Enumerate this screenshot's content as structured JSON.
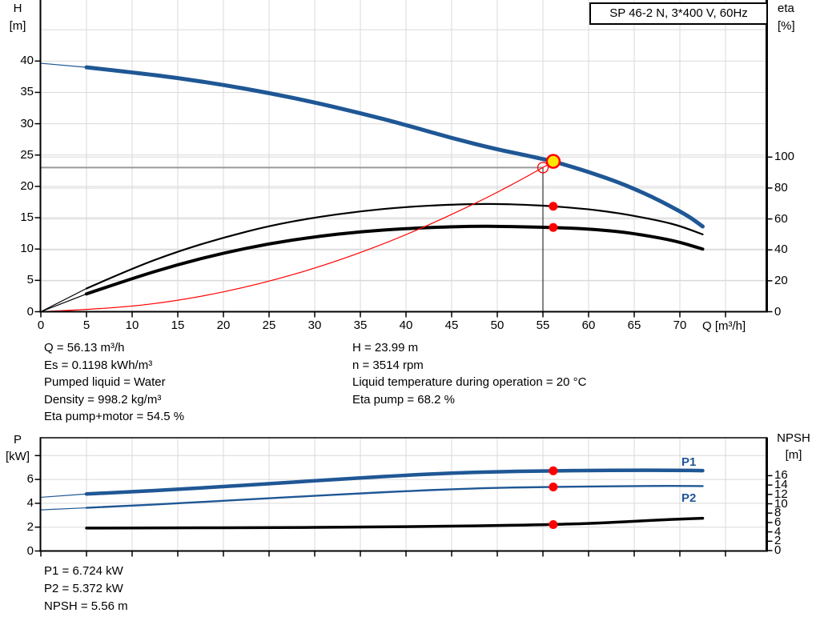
{
  "colors": {
    "curve_blue": "#1f5795",
    "marker_red": "#ff0000",
    "marker_yellow_fill": "#ffe600",
    "grid_gray": "#d9d9d9",
    "reference_gray": "#9a9a9a",
    "axis_black": "#000000"
  },
  "title_box": {
    "label": "SP 46-2 N, 3*400 V, 60Hz"
  },
  "top_chart": {
    "y_left_title_1": "H",
    "y_left_title_2": "[m]",
    "y_right_title_1": "eta",
    "y_right_title_2": "[%]",
    "x_axis_label": "Q [m³/h]"
  },
  "bottom_chart": {
    "y_left_title_1": "P",
    "y_left_title_2": "[kW]",
    "y_right_title_1": "NPSH",
    "y_right_title_2": "[m]",
    "p1_label": "P1",
    "p2_label": "P2"
  },
  "info_top": {
    "left": [
      "Q = 56.13 m³/h",
      "Es = 0.1198 kWh/m³",
      "Pumped liquid = Water",
      "Density = 998.2 kg/m³",
      "Eta pump+motor = 54.5 %"
    ],
    "right": [
      "H = 23.99 m",
      "n = 3514 rpm",
      "Liquid temperature during operation = 20 °C",
      "Eta pump = 68.2 %"
    ]
  },
  "info_bottom": [
    "P1 = 6.724 kW",
    "P2 = 5.372 kW",
    "NPSH = 5.56 m"
  ],
  "chart_data": [
    {
      "id": "head-efficiency-chart",
      "type": "line",
      "title": "SP 46-2 N, 3*400 V, 60Hz",
      "xlabel": "Q [m³/h]",
      "xlim": [
        0,
        79.5
      ],
      "x_tick_marks": [
        0,
        5,
        10,
        15,
        20,
        25,
        30,
        35,
        40,
        45,
        50,
        55,
        60,
        65,
        70,
        75
      ],
      "x_tick_labels": [
        0,
        5,
        10,
        15,
        20,
        25,
        30,
        35,
        40,
        45,
        50,
        55,
        60,
        65,
        70
      ],
      "grid_x": [
        5,
        10,
        15,
        20,
        25,
        30,
        35,
        40,
        45,
        50,
        55,
        60,
        65,
        70,
        75
      ],
      "y_left": {
        "label": "H [m]",
        "lim": [
          0,
          49.8
        ],
        "ticks": [
          0,
          5,
          10,
          15,
          20,
          25,
          30,
          35,
          40
        ],
        "grid": [
          5,
          10,
          15,
          20,
          25,
          30,
          35,
          40,
          45
        ]
      },
      "y_right": {
        "label": "eta [%]",
        "lim": [
          0,
          201
        ],
        "ticks": [
          0,
          20,
          40,
          60,
          80,
          100
        ],
        "grid": [
          20,
          40,
          60,
          80,
          100
        ]
      },
      "legend": "none",
      "series": [
        {
          "name": "H head curve",
          "axis": "H",
          "color": "#1f5795",
          "width": 5,
          "lead": [
            [
              0,
              39.65
            ]
          ],
          "points": [
            [
              5,
              39
            ],
            [
              10,
              38.2
            ],
            [
              15,
              37.3
            ],
            [
              20,
              36.2
            ],
            [
              25,
              34.9
            ],
            [
              30,
              33.4
            ],
            [
              35,
              31.7
            ],
            [
              40,
              29.8
            ],
            [
              45,
              27.7
            ],
            [
              50,
              25.9
            ],
            [
              53,
              25.0
            ],
            [
              56.13,
              23.99
            ],
            [
              58,
              23.2
            ],
            [
              60,
              22.3
            ],
            [
              63,
              20.8
            ],
            [
              65,
              19.6
            ],
            [
              67,
              18.3
            ],
            [
              69,
              16.8
            ],
            [
              71,
              15.2
            ],
            [
              72.5,
              13.6
            ]
          ]
        },
        {
          "name": "Eta pump",
          "axis": "eta",
          "color": "#000000",
          "width": 2.2,
          "lead": [
            [
              0,
              0
            ]
          ],
          "points": [
            [
              5,
              15
            ],
            [
              10,
              28
            ],
            [
              15,
              39
            ],
            [
              20,
              48
            ],
            [
              25,
              55.5
            ],
            [
              30,
              61
            ],
            [
              35,
              65
            ],
            [
              40,
              67.8
            ],
            [
              45,
              69.3
            ],
            [
              48,
              69.7
            ],
            [
              50,
              69.7
            ],
            [
              53,
              69.2
            ],
            [
              56.13,
              68.2
            ],
            [
              60,
              66.3
            ],
            [
              63,
              64
            ],
            [
              65,
              62
            ],
            [
              68,
              58.5
            ],
            [
              70,
              55.5
            ],
            [
              72.5,
              50
            ]
          ]
        },
        {
          "name": "Eta pump+motor",
          "axis": "eta",
          "color": "#000000",
          "width": 4,
          "lead": [
            [
              0,
              0
            ]
          ],
          "points": [
            [
              5,
              11.5
            ],
            [
              10,
              21.5
            ],
            [
              15,
              30.5
            ],
            [
              20,
              38
            ],
            [
              25,
              44
            ],
            [
              30,
              48.5
            ],
            [
              35,
              51.8
            ],
            [
              40,
              53.8
            ],
            [
              45,
              55.0
            ],
            [
              48,
              55.3
            ],
            [
              50,
              55.2
            ],
            [
              53,
              54.9
            ],
            [
              56.13,
              54.5
            ],
            [
              60,
              53.5
            ],
            [
              63,
              52
            ],
            [
              65,
              50.5
            ],
            [
              68,
              47.5
            ],
            [
              70,
              45
            ],
            [
              72.5,
              40.5
            ]
          ]
        },
        {
          "name": "System curve",
          "axis": "H",
          "color": "#ff0000",
          "width": 1.2,
          "points": [
            [
              0,
              0
            ],
            [
              8,
              0.49
            ],
            [
              16,
              1.95
            ],
            [
              24,
              4.38
            ],
            [
              32,
              7.79
            ],
            [
              40,
              12.18
            ],
            [
              48,
              17.54
            ],
            [
              52,
              20.58
            ],
            [
              55,
              23.0
            ],
            [
              56.13,
              23.99
            ]
          ]
        }
      ],
      "reference_lines": {
        "q": 55,
        "h": 23.0
      },
      "markers": [
        {
          "axis": "H",
          "q": 56.13,
          "v": 23.99,
          "style": "duty-yellow"
        },
        {
          "axis": "H",
          "q": 55,
          "v": 23.0,
          "style": "open-red"
        },
        {
          "axis": "eta",
          "q": 56.13,
          "v": 68.2,
          "style": "red-dot"
        },
        {
          "axis": "eta",
          "q": 56.13,
          "v": 54.5,
          "style": "red-dot"
        }
      ]
    },
    {
      "id": "power-npsh-chart",
      "type": "line",
      "title": "",
      "xlabel": "",
      "xlim": [
        0,
        79.5
      ],
      "x_tick_marks": [
        0,
        5,
        10,
        15,
        20,
        25,
        30,
        35,
        40,
        45,
        50,
        55,
        60,
        65,
        70,
        75
      ],
      "x_tick_labels": [],
      "grid_x": [
        5,
        10,
        15,
        20,
        25,
        30,
        35,
        40,
        45,
        50,
        55,
        60,
        65,
        70,
        75
      ],
      "y_left": {
        "label": "P [kW]",
        "lim": [
          0,
          9.5
        ],
        "ticks": [
          0,
          2,
          4,
          6
        ],
        "tick_marks": [
          0,
          2,
          4,
          6,
          8
        ],
        "grid": [
          2,
          4,
          6,
          8
        ]
      },
      "y_right": {
        "label": "NPSH [m]",
        "lim": [
          0,
          16
        ],
        "ticks": [
          0,
          2,
          4,
          6,
          8,
          10,
          12,
          14,
          16
        ]
      },
      "legend": "inline P1/P2",
      "series": [
        {
          "name": "P1",
          "axis": "P",
          "color": "#1f5795",
          "width": 4.5,
          "lead": [
            [
              0,
              4.5
            ]
          ],
          "points": [
            [
              5,
              4.78
            ],
            [
              10,
              4.97
            ],
            [
              15,
              5.17
            ],
            [
              20,
              5.4
            ],
            [
              25,
              5.64
            ],
            [
              30,
              5.89
            ],
            [
              35,
              6.13
            ],
            [
              40,
              6.35
            ],
            [
              45,
              6.53
            ],
            [
              50,
              6.65
            ],
            [
              56.13,
              6.724
            ],
            [
              60,
              6.75
            ],
            [
              65,
              6.77
            ],
            [
              68,
              6.77
            ],
            [
              70,
              6.76
            ],
            [
              72.5,
              6.74
            ]
          ]
        },
        {
          "name": "P2",
          "axis": "P",
          "color": "#1f5795",
          "width": 2.4,
          "lead": [
            [
              0,
              3.45
            ]
          ],
          "points": [
            [
              5,
              3.62
            ],
            [
              10,
              3.8
            ],
            [
              15,
              4.0
            ],
            [
              20,
              4.21
            ],
            [
              25,
              4.42
            ],
            [
              30,
              4.63
            ],
            [
              35,
              4.83
            ],
            [
              40,
              5.02
            ],
            [
              45,
              5.18
            ],
            [
              50,
              5.3
            ],
            [
              56.13,
              5.372
            ],
            [
              60,
              5.41
            ],
            [
              65,
              5.44
            ],
            [
              68,
              5.46
            ],
            [
              70,
              5.46
            ],
            [
              72.5,
              5.44
            ]
          ]
        },
        {
          "name": "NPSH",
          "axis": "NPSH",
          "color": "#000000",
          "width": 3.5,
          "points": [
            [
              5,
              4.8
            ],
            [
              15,
              4.85
            ],
            [
              25,
              4.9
            ],
            [
              35,
              5.0
            ],
            [
              45,
              5.2
            ],
            [
              50,
              5.35
            ],
            [
              56.13,
              5.56
            ],
            [
              60,
              5.8
            ],
            [
              63,
              6.05
            ],
            [
              65,
              6.25
            ],
            [
              68,
              6.55
            ],
            [
              70,
              6.72
            ],
            [
              72.5,
              6.9
            ]
          ]
        }
      ],
      "markers": [
        {
          "axis": "P",
          "q": 56.13,
          "v": 6.724,
          "style": "red-dot"
        },
        {
          "axis": "P",
          "q": 56.13,
          "v": 5.372,
          "style": "red-dot"
        },
        {
          "axis": "NPSH",
          "q": 56.13,
          "v": 5.56,
          "style": "red-dot"
        }
      ]
    }
  ]
}
